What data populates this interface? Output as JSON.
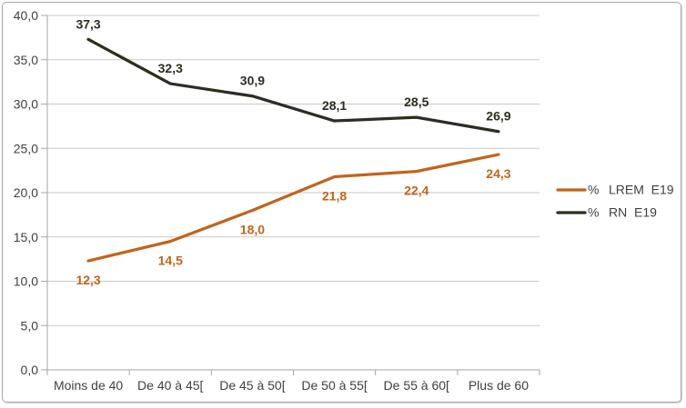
{
  "chart_data": {
    "type": "line",
    "title": "",
    "categories": [
      "Moins de 40",
      "De 40 à 45[",
      "De 45 à 50[",
      "De 50 à 55[",
      "De 55 à 60[",
      "Plus de 60"
    ],
    "series": [
      {
        "name": "LREM E19",
        "legend_prefix": "%",
        "legend_label": "LREM  E19",
        "color": "#C2641C",
        "values": [
          12.3,
          14.5,
          18.0,
          21.8,
          22.4,
          24.3
        ],
        "point_labels": [
          "12,3",
          "14,5",
          "18,0",
          "21,8",
          "22,4",
          "24,3"
        ],
        "label_position": "below"
      },
      {
        "name": "RN E19",
        "legend_prefix": "%",
        "legend_label": "RN  E19",
        "color": "#2E2D1F",
        "values": [
          37.3,
          32.3,
          30.9,
          28.1,
          28.5,
          26.9
        ],
        "point_labels": [
          "37,3",
          "32,3",
          "30,9",
          "28,1",
          "28,5",
          "26,9"
        ],
        "label_position": "above"
      }
    ],
    "y_axis": {
      "min": 0,
      "max": 40,
      "step": 5,
      "tick_labels": [
        "0,0",
        "5,0",
        "10,0",
        "15,0",
        "20,0",
        "25,0",
        "30,0",
        "35,0",
        "40,0"
      ]
    },
    "xlabel": "",
    "ylabel": "",
    "grid": true,
    "legend_position": "right"
  },
  "colors": {
    "grid": "#C9C9C9",
    "axis": "#A6A6A6",
    "tick_text": "#3F3F3F",
    "legend_text": "#3F3F3F",
    "frame_border": "#A9A9A9",
    "background": "#FFFFFF"
  }
}
